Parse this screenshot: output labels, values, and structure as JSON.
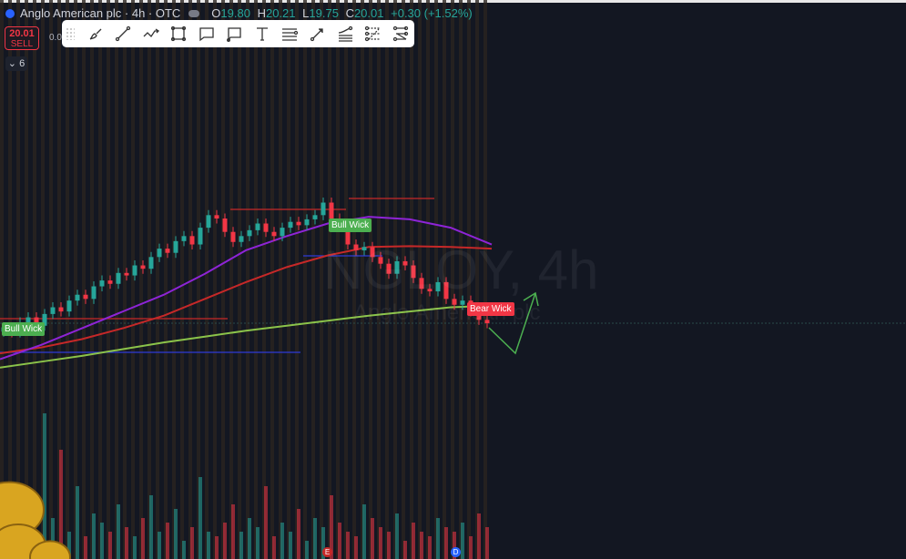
{
  "header": {
    "symbol": "Anglo American plc · 4h · OTC",
    "open_label": "O",
    "open": "19.80",
    "high_label": "H",
    "high": "20.21",
    "low_label": "L",
    "low": "19.75",
    "close_label": "C",
    "close": "20.01",
    "change": "+0.30 (+1.52%)"
  },
  "trade": {
    "sell_price": "20.01",
    "sell_label": "SELL",
    "spread": "0.0"
  },
  "indicators_toggle": {
    "count": "6",
    "icon": "chevron-down-icon"
  },
  "toolbar": {
    "tools": [
      "brush-icon",
      "trend-line-icon",
      "path-icon",
      "rectangle-icon",
      "callout-icon",
      "comment-icon",
      "text-icon",
      "horizontal-lines-icon",
      "arrow-line-icon",
      "fib-retracement-icon",
      "parallel-channel-icon",
      "fib-fan-icon"
    ]
  },
  "watermark": {
    "ticker": "NGLOY, 4h",
    "name": "Anglo American plc"
  },
  "labels": {
    "bull_wick_1": "Bull Wick",
    "bull_wick_2": "Bull Wick",
    "bear_wick": "Bear Wick"
  },
  "events": {
    "earnings": "E",
    "dividend": "D"
  },
  "colors": {
    "background": "#131722",
    "up": "#26a69a",
    "down": "#f23645",
    "ma_fast": "#8e24d6",
    "ma_mid": "#c62828",
    "ma_slow": "#8bc34a",
    "level_blue": "#2e3bd6",
    "level_red": "#c62828",
    "projection": "#4caf50"
  },
  "candles": {
    "closes": [
      19.96,
      19.9,
      20.02,
      20.08,
      19.98,
      20.12,
      20.2,
      20.15,
      20.28,
      20.35,
      20.3,
      20.45,
      20.52,
      20.48,
      20.61,
      20.58,
      20.7,
      20.66,
      20.8,
      20.9,
      20.85,
      20.99,
      21.05,
      20.95,
      21.15,
      21.3,
      21.26,
      21.1,
      20.98,
      21.05,
      21.12,
      21.2,
      21.1,
      21.05,
      21.15,
      21.22,
      21.18,
      21.25,
      21.3,
      21.45,
      21.26,
      21.2,
      20.95,
      20.88,
      20.92,
      20.8,
      20.72,
      20.6,
      20.75,
      20.7,
      20.55,
      20.42,
      20.39,
      20.5,
      20.3,
      20.23,
      20.28,
      20.15,
      20.05,
      20.01
    ],
    "volumes": [
      20,
      35,
      25,
      40,
      30,
      160,
      45,
      120,
      30,
      80,
      25,
      50,
      40,
      30,
      60,
      35,
      25,
      45,
      70,
      30,
      40,
      55,
      20,
      35,
      90,
      30,
      25,
      40,
      60,
      30,
      45,
      35,
      80,
      25,
      40,
      30,
      55,
      20,
      45,
      35,
      70,
      40,
      30,
      25,
      60,
      45,
      35,
      30,
      50,
      20,
      40,
      30,
      25,
      45,
      35,
      30,
      40,
      25,
      50,
      35
    ]
  },
  "moving_averages": {
    "fast": [
      19.58,
      19.75,
      19.95,
      20.15,
      20.35,
      20.6,
      20.88,
      21.05,
      21.2,
      21.28,
      21.25,
      21.15,
      20.95
    ],
    "mid": [
      19.65,
      19.72,
      19.82,
      19.95,
      20.1,
      20.3,
      20.5,
      20.68,
      20.82,
      20.92,
      20.93,
      20.92,
      20.9
    ],
    "slow": [
      19.48,
      19.55,
      19.62,
      19.7,
      19.78,
      19.85,
      19.92,
      19.98,
      20.04,
      20.1,
      20.15,
      20.2,
      20.22
    ]
  }
}
